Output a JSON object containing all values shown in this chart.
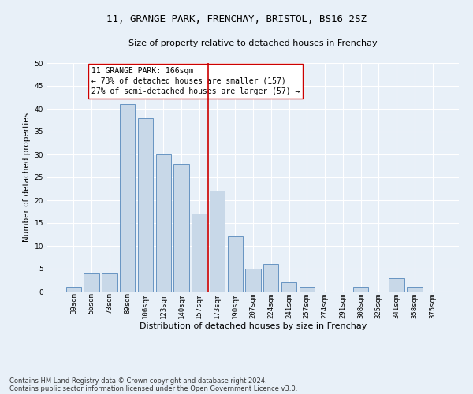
{
  "title": "11, GRANGE PARK, FRENCHAY, BRISTOL, BS16 2SZ",
  "subtitle": "Size of property relative to detached houses in Frenchay",
  "xlabel": "Distribution of detached houses by size in Frenchay",
  "ylabel": "Number of detached properties",
  "categories": [
    "39sqm",
    "56sqm",
    "73sqm",
    "89sqm",
    "106sqm",
    "123sqm",
    "140sqm",
    "157sqm",
    "173sqm",
    "190sqm",
    "207sqm",
    "224sqm",
    "241sqm",
    "257sqm",
    "274sqm",
    "291sqm",
    "308sqm",
    "325sqm",
    "341sqm",
    "358sqm",
    "375sqm"
  ],
  "values": [
    1,
    4,
    4,
    41,
    38,
    30,
    28,
    17,
    22,
    12,
    5,
    6,
    2,
    1,
    0,
    0,
    1,
    0,
    3,
    1,
    0
  ],
  "bar_color": "#c8d8e8",
  "bar_edgecolor": "#5588bb",
  "vline_x": 7.5,
  "vline_color": "#cc0000",
  "ylim": [
    0,
    50
  ],
  "yticks": [
    0,
    5,
    10,
    15,
    20,
    25,
    30,
    35,
    40,
    45,
    50
  ],
  "annotation_title": "11 GRANGE PARK: 166sqm",
  "annotation_line1": "← 73% of detached houses are smaller (157)",
  "annotation_line2": "27% of semi-detached houses are larger (57) →",
  "footnote1": "Contains HM Land Registry data © Crown copyright and database right 2024.",
  "footnote2": "Contains public sector information licensed under the Open Government Licence v3.0.",
  "bg_color": "#e8f0f8",
  "plot_bg_color": "#e8f0f8",
  "grid_color": "#ffffff",
  "title_fontsize": 9,
  "subtitle_fontsize": 8,
  "axis_label_fontsize": 7.5,
  "tick_fontsize": 6.5,
  "annotation_fontsize": 7,
  "footnote_fontsize": 6
}
